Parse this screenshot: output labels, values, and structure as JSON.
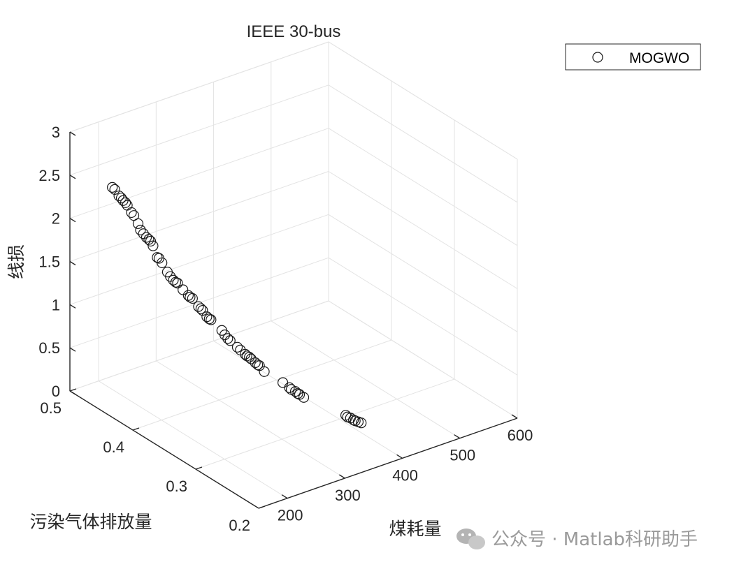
{
  "chart_data": {
    "type": "scatter",
    "title": "IEEE 30-bus",
    "xlabel": "煤耗量",
    "ylabel": "污染气体排放量",
    "zlabel": "线损",
    "xlim": [
      150,
      600
    ],
    "ylim": [
      0.2,
      0.5
    ],
    "zlim": [
      0,
      3
    ],
    "x_ticks": [
      "200",
      "300",
      "400",
      "500",
      "600"
    ],
    "y_ticks": [
      "0.2",
      "0.3",
      "0.4",
      "0.5"
    ],
    "z_ticks": [
      "0",
      "0.5",
      "1",
      "1.5",
      "2",
      "2.5",
      "3"
    ],
    "grid": true,
    "view": "3d",
    "legend": {
      "position": "top-right",
      "entries": [
        "MOGWO"
      ]
    },
    "series": [
      {
        "name": "MOGWO",
        "marker": "circle",
        "points": [
          [
            180,
            0.46,
            2.47
          ],
          [
            182,
            0.458,
            2.45
          ],
          [
            186,
            0.455,
            2.38
          ],
          [
            188,
            0.453,
            2.36
          ],
          [
            190,
            0.452,
            2.33
          ],
          [
            192,
            0.45,
            2.31
          ],
          [
            194,
            0.449,
            2.28
          ],
          [
            198,
            0.446,
            2.2
          ],
          [
            200,
            0.444,
            2.17
          ],
          [
            204,
            0.441,
            2.08
          ],
          [
            206,
            0.439,
            2.01
          ],
          [
            209,
            0.437,
            1.97
          ],
          [
            212,
            0.435,
            1.93
          ],
          [
            214,
            0.433,
            1.91
          ],
          [
            216,
            0.432,
            1.89
          ],
          [
            218,
            0.43,
            1.84
          ],
          [
            222,
            0.427,
            1.71
          ],
          [
            224,
            0.426,
            1.7
          ],
          [
            227,
            0.424,
            1.65
          ],
          [
            232,
            0.42,
            1.55
          ],
          [
            235,
            0.418,
            1.5
          ],
          [
            238,
            0.416,
            1.46
          ],
          [
            240,
            0.414,
            1.44
          ],
          [
            242,
            0.413,
            1.43
          ],
          [
            247,
            0.409,
            1.36
          ],
          [
            252,
            0.405,
            1.3
          ],
          [
            254,
            0.404,
            1.28
          ],
          [
            256,
            0.402,
            1.27
          ],
          [
            262,
            0.398,
            1.18
          ],
          [
            264,
            0.396,
            1.16
          ],
          [
            266,
            0.395,
            1.14
          ],
          [
            270,
            0.392,
            1.07
          ],
          [
            272,
            0.39,
            1.05
          ],
          [
            274,
            0.389,
            1.04
          ],
          [
            284,
            0.381,
            0.93
          ],
          [
            287,
            0.379,
            0.88
          ],
          [
            290,
            0.377,
            0.84
          ],
          [
            292,
            0.375,
            0.82
          ],
          [
            299,
            0.37,
            0.75
          ],
          [
            302,
            0.368,
            0.72
          ],
          [
            306,
            0.364,
            0.68
          ],
          [
            308,
            0.363,
            0.66
          ],
          [
            310,
            0.361,
            0.65
          ],
          [
            312,
            0.36,
            0.63
          ],
          [
            316,
            0.357,
            0.59
          ],
          [
            318,
            0.355,
            0.57
          ],
          [
            320,
            0.354,
            0.56
          ],
          [
            324,
            0.35,
            0.5
          ],
          [
            342,
            0.337,
            0.39
          ],
          [
            348,
            0.332,
            0.34
          ],
          [
            350,
            0.331,
            0.32
          ],
          [
            354,
            0.328,
            0.3
          ],
          [
            356,
            0.326,
            0.28
          ],
          [
            358,
            0.325,
            0.27
          ],
          [
            362,
            0.322,
            0.24
          ],
          [
            400,
            0.29,
            0.09
          ],
          [
            402,
            0.289,
            0.07
          ],
          [
            405,
            0.287,
            0.06
          ],
          [
            408,
            0.285,
            0.04
          ],
          [
            410,
            0.284,
            0.03
          ],
          [
            413,
            0.282,
            0.02
          ],
          [
            416,
            0.28,
            0.01
          ]
        ]
      }
    ]
  },
  "watermark": {
    "text": "公众号 · Matlab科研助手"
  }
}
